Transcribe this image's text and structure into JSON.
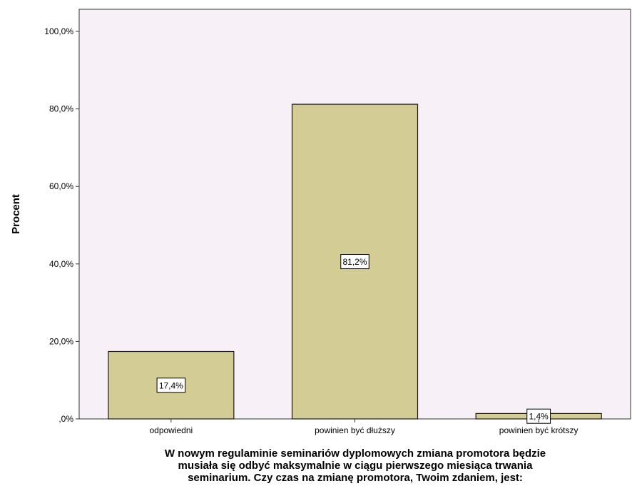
{
  "chart_data": {
    "type": "bar",
    "categories": [
      "odpowiedni",
      "powinien być dłuższy",
      "powinien być krótszy"
    ],
    "values": [
      17.4,
      81.2,
      1.4
    ],
    "data_labels": [
      "17,4%",
      "81,2%",
      "1,4%"
    ],
    "ylabel": "Procent",
    "xlabel_lines": [
      "W nowym regulaminie seminariów dyplomowych zmiana promotora będzie",
      "musiała się odbyć maksymalnie w ciągu pierwszego miesiąca trwania",
      "seminarium. Czy czas na zmianę promotora, Twoim zdaniem, jest:"
    ],
    "ylim": [
      0,
      100
    ],
    "yticks": [
      0,
      20,
      40,
      60,
      80,
      100
    ],
    "ytick_labels": [
      ",0%",
      "20,0%",
      "40,0%",
      "60,0%",
      "80,0%",
      "100,0%"
    ],
    "grid": false,
    "colors": {
      "plot_background": "#f7f0f7",
      "bar_fill": "#d4cc95",
      "bar_stroke": "#1a1a1a"
    }
  }
}
